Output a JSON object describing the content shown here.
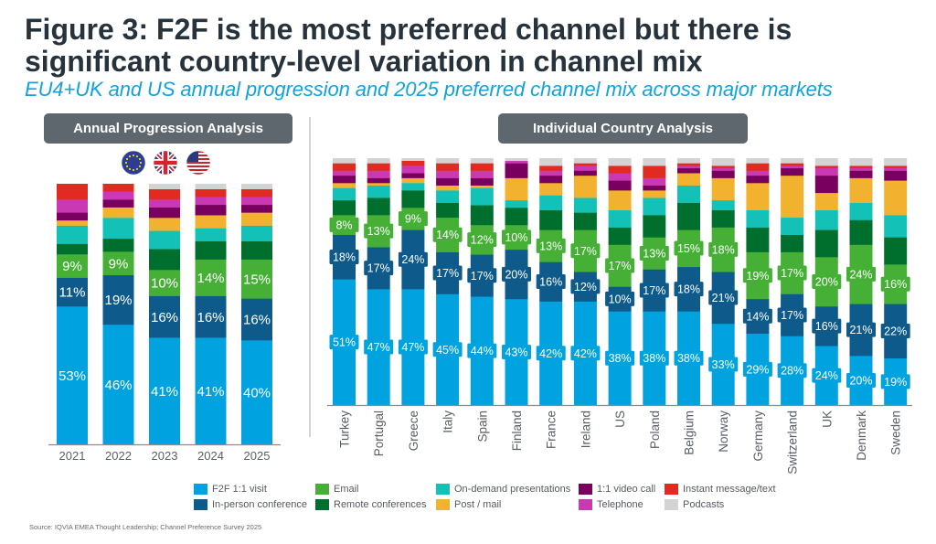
{
  "header": {
    "title_line1": "Figure 3: F2F is the most preferred channel but there is",
    "title_line2": "significant country-level variation in channel mix",
    "subtitle": "EU4+UK and US annual progression and 2025 preferred channel mix across major markets"
  },
  "panels": {
    "left_heading": "Annual Progression Analysis",
    "right_heading": "Individual Country Analysis",
    "left_flags": [
      "eu-flag-icon",
      "uk-flag-icon",
      "us-flag-icon"
    ]
  },
  "legend": [
    {
      "label": "F2F 1:1 visit",
      "color": "#00a3e0"
    },
    {
      "label": "In-person conference",
      "color": "#0e5a8a"
    },
    {
      "label": "Email",
      "color": "#45b035"
    },
    {
      "label": "Remote conferences",
      "color": "#006f2e"
    },
    {
      "label": "On-demand presentations",
      "color": "#13c1b6"
    },
    {
      "label": "Post / mail",
      "color": "#f2b230"
    },
    {
      "label": "1:1 video call",
      "color": "#7a005f"
    },
    {
      "label": "Telephone",
      "color": "#cb38b4"
    },
    {
      "label": "Instant message/text",
      "color": "#e22b20"
    },
    {
      "label": "Podcasts",
      "color": "#d1d3d4"
    }
  ],
  "source": "Source: IQVIA EMEA Thought Leadership; Channel Preference Survey 2025",
  "chart_data": [
    {
      "type": "bar",
      "stacked": true,
      "title": "Annual Progression Analysis",
      "xlabel": "",
      "ylabel": "",
      "unit": "%",
      "ylim": [
        0,
        100
      ],
      "grid": false,
      "legend": "bottom",
      "labeled_series": [
        "F2F 1:1 visit",
        "In-person conference",
        "Email"
      ],
      "categories": [
        "2021",
        "2022",
        "2023",
        "2024",
        "2025"
      ],
      "series": [
        {
          "name": "F2F 1:1 visit",
          "color": "#00a3e0",
          "values": [
            53,
            46,
            41,
            41,
            40
          ]
        },
        {
          "name": "In-person conference",
          "color": "#0e5a8a",
          "values": [
            11,
            19,
            16,
            16,
            16
          ]
        },
        {
          "name": "Email",
          "color": "#45b035",
          "values": [
            9,
            9,
            10,
            14,
            15
          ]
        },
        {
          "name": "Remote conferences",
          "color": "#006f2e",
          "values": [
            4,
            5,
            8,
            7,
            7
          ]
        },
        {
          "name": "On-demand presentations",
          "color": "#13c1b6",
          "values": [
            7,
            8,
            7,
            5,
            6
          ]
        },
        {
          "name": "Post / mail",
          "color": "#f2b230",
          "values": [
            2,
            4,
            5,
            5,
            5
          ]
        },
        {
          "name": "1:1 video call",
          "color": "#7a005f",
          "values": [
            3,
            3,
            4,
            4,
            3
          ]
        },
        {
          "name": "Telephone",
          "color": "#cb38b4",
          "values": [
            5,
            3,
            3,
            3,
            3
          ]
        },
        {
          "name": "Instant message/text",
          "color": "#e22b20",
          "values": [
            6,
            3,
            4,
            3,
            3
          ]
        },
        {
          "name": "Podcasts",
          "color": "#d1d3d4",
          "values": [
            0,
            0,
            2,
            2,
            2
          ]
        }
      ]
    },
    {
      "type": "bar",
      "stacked": true,
      "title": "Individual Country Analysis",
      "xlabel": "",
      "ylabel": "",
      "unit": "%",
      "ylim": [
        0,
        100
      ],
      "grid": false,
      "legend": "bottom",
      "labeled_series": [
        "F2F 1:1 visit",
        "In-person conference",
        "Email"
      ],
      "categories": [
        "Turkey",
        "Portugal",
        "Greece",
        "Italy",
        "Spain",
        "Finland",
        "France",
        "Ireland",
        "US",
        "Poland",
        "Belgium",
        "Norway",
        "Germany",
        "Switzerland",
        "UK",
        "Denmark",
        "Sweden"
      ],
      "series": [
        {
          "name": "F2F 1:1 visit",
          "color": "#00a3e0",
          "values": [
            51,
            47,
            47,
            45,
            44,
            43,
            42,
            42,
            38,
            38,
            38,
            33,
            29,
            28,
            24,
            20,
            19
          ]
        },
        {
          "name": "In-person conference",
          "color": "#0e5a8a",
          "values": [
            18,
            17,
            24,
            17,
            17,
            20,
            16,
            12,
            10,
            17,
            18,
            21,
            14,
            17,
            16,
            21,
            22
          ]
        },
        {
          "name": "Email",
          "color": "#45b035",
          "values": [
            8,
            13,
            9,
            14,
            12,
            10,
            13,
            17,
            17,
            13,
            15,
            18,
            19,
            17,
            20,
            24,
            16
          ]
        },
        {
          "name": "Remote conferences",
          "color": "#006f2e",
          "values": [
            6,
            7,
            7,
            6,
            8,
            7,
            8,
            7,
            7,
            9,
            11,
            7,
            10,
            7,
            11,
            10,
            11
          ]
        },
        {
          "name": "On-demand presentations",
          "color": "#13c1b6",
          "values": [
            5,
            5,
            3,
            5,
            7,
            3,
            6,
            6,
            7,
            7,
            7,
            4,
            7,
            7,
            8,
            7,
            9
          ]
        },
        {
          "name": "Post / mail",
          "color": "#f2b230",
          "values": [
            2,
            1,
            2,
            2,
            1,
            9,
            5,
            9,
            8,
            3,
            5,
            9,
            11,
            17,
            7,
            10,
            14
          ]
        },
        {
          "name": "1:1 video call",
          "color": "#7a005f",
          "values": [
            3,
            2,
            2,
            3,
            3,
            6,
            3,
            2,
            4,
            2,
            2,
            3,
            3,
            3,
            7,
            3,
            4
          ]
        },
        {
          "name": "Telephone",
          "color": "#cb38b4",
          "values": [
            2,
            3,
            3,
            3,
            3,
            1,
            2,
            2,
            3,
            3,
            1,
            1,
            2,
            1,
            3,
            1,
            1
          ]
        },
        {
          "name": "Instant message/text",
          "color": "#e22b20",
          "values": [
            3,
            3,
            2,
            3,
            3,
            0,
            2,
            1,
            3,
            5,
            1,
            1,
            3,
            1,
            1,
            1,
            1
          ]
        },
        {
          "name": "Podcasts",
          "color": "#d1d3d4",
          "values": [
            2,
            2,
            1,
            2,
            2,
            1,
            3,
            2,
            3,
            3,
            2,
            3,
            2,
            2,
            3,
            3,
            3
          ]
        }
      ]
    }
  ]
}
